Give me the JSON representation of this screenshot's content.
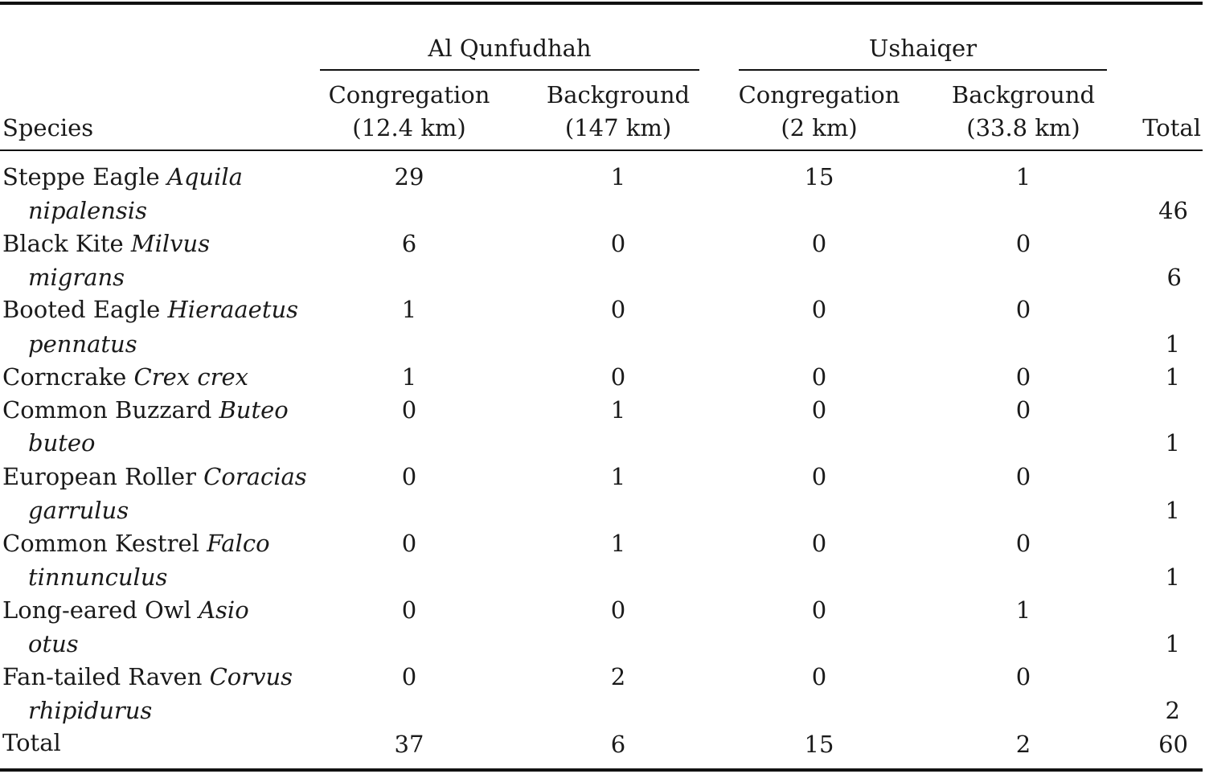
{
  "header": {
    "species_label": "Species",
    "total_label": "Total",
    "groups": [
      {
        "name": "Al Qunfudhah",
        "columns": [
          {
            "line1": "Congregation",
            "line2": "(12.4 km)"
          },
          {
            "line1": "Background",
            "line2": "(147 km)"
          }
        ]
      },
      {
        "name": "Ushaiqer",
        "columns": [
          {
            "line1": "Congregation",
            "line2": "(2 km)"
          },
          {
            "line1": "Background",
            "line2": "(33.8 km)"
          }
        ]
      }
    ]
  },
  "rows": [
    {
      "common": "Steppe Eagle",
      "sci1": "Aquila",
      "sci2": "nipalensis",
      "values": [
        "29",
        "1",
        "15",
        "1"
      ],
      "total": "46"
    },
    {
      "common": "Black Kite",
      "sci1": "Milvus",
      "sci2": "migrans",
      "values": [
        "6",
        "0",
        "0",
        "0"
      ],
      "total": "6"
    },
    {
      "common": "Booted Eagle",
      "sci1": "Hieraaetus",
      "sci2": "pennatus",
      "values": [
        "1",
        "0",
        "0",
        "0"
      ],
      "total": "1"
    },
    {
      "common": "Corncrake",
      "sci1": "Crex crex",
      "sci2": "",
      "values": [
        "1",
        "0",
        "0",
        "0"
      ],
      "total": "1"
    },
    {
      "common": "Common Buzzard",
      "sci1": "Buteo",
      "sci2": "buteo",
      "values": [
        "0",
        "1",
        "0",
        "0"
      ],
      "total": "1"
    },
    {
      "common": "European Roller",
      "sci1": "Coracias",
      "sci2": "garrulus",
      "values": [
        "0",
        "1",
        "0",
        "0"
      ],
      "total": "1"
    },
    {
      "common": "Common Kestrel",
      "sci1": "Falco",
      "sci2": "tinnunculus",
      "values": [
        "0",
        "1",
        "0",
        "0"
      ],
      "total": "1"
    },
    {
      "common": "Long-eared Owl",
      "sci1": "Asio",
      "sci2": "otus",
      "values": [
        "0",
        "0",
        "0",
        "1"
      ],
      "total": "1"
    },
    {
      "common": "Fan-tailed Raven",
      "sci1": "Corvus",
      "sci2": "rhipidurus",
      "values": [
        "0",
        "2",
        "0",
        "0"
      ],
      "total": "2"
    }
  ],
  "totals": {
    "label": "Total",
    "values": [
      "37",
      "6",
      "15",
      "2"
    ],
    "total": "60"
  }
}
